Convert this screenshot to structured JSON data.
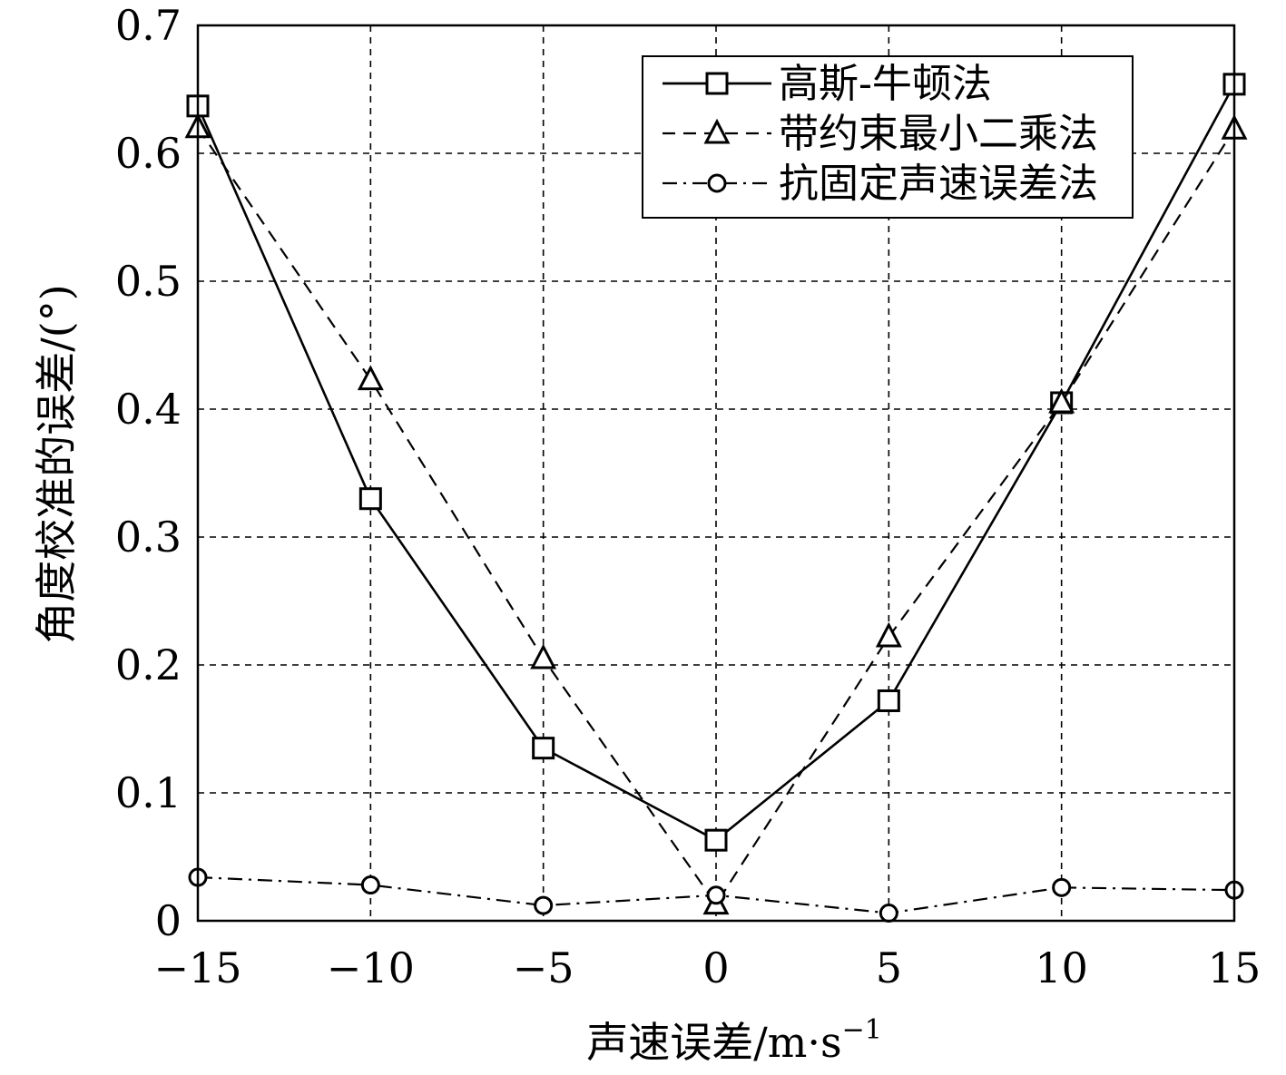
{
  "chart_data": {
    "type": "line",
    "xlabel": "声速误差/m·s",
    "xlabel_sup": "−1",
    "ylabel": "角度校准的误差/(°)",
    "xlim": [
      -15,
      15
    ],
    "ylim": [
      0,
      0.7
    ],
    "x_ticks": [
      -15,
      -10,
      -5,
      0,
      5,
      10,
      15
    ],
    "x_tick_labels": [
      "−15",
      "−10",
      "−5",
      "0",
      "5",
      "10",
      "15"
    ],
    "y_ticks": [
      0,
      0.1,
      0.2,
      0.3,
      0.4,
      0.5,
      0.6,
      0.7
    ],
    "y_tick_labels": [
      "0",
      "0.1",
      "0.2",
      "0.3",
      "0.4",
      "0.5",
      "0.6",
      "0.7"
    ],
    "grid": true,
    "legend_position": "top-right",
    "x": [
      -15,
      -10,
      -5,
      0,
      5,
      10,
      15
    ],
    "series": [
      {
        "name": "高斯-牛顿法",
        "marker": "square",
        "line_style": "solid",
        "values": [
          0.637,
          0.33,
          0.135,
          0.063,
          0.172,
          0.405,
          0.654
        ]
      },
      {
        "name": "带约束最小二乘法",
        "marker": "triangle",
        "line_style": "dashed",
        "values": [
          0.62,
          0.423,
          0.205,
          0.013,
          0.222,
          0.405,
          0.619
        ]
      },
      {
        "name": "抗固定声速误差法",
        "marker": "circle",
        "line_style": "dashdot",
        "values": [
          0.034,
          0.028,
          0.012,
          0.02,
          0.006,
          0.026,
          0.024
        ]
      }
    ]
  }
}
